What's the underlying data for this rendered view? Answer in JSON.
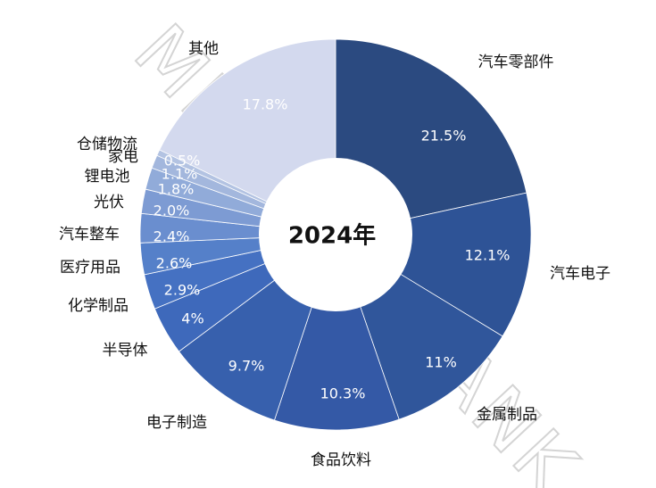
{
  "chart_data": {
    "type": "donut",
    "center_label": "2024年",
    "watermark": "MIR DATABANK",
    "categories": [
      "汽车零部件",
      "汽车电子",
      "金属制品",
      "食品饮料",
      "电子制造",
      "半导体",
      "化学制品",
      "医疗用品",
      "汽车整车",
      "光伏",
      "锂电池",
      "家电",
      "仓储物流",
      "其他"
    ],
    "values": [
      21.5,
      12.1,
      11,
      10.3,
      9.7,
      4,
      2.9,
      2.6,
      2.4,
      2.0,
      1.8,
      1.1,
      0.5,
      17.8
    ],
    "value_labels": [
      "21.5%",
      "12.1%",
      "11%",
      "10.3%",
      "9.7%",
      "4%",
      "2.9%",
      "2.6%",
      "2.4%",
      "2.0%",
      "1.8%",
      "1.1%",
      "0.5%",
      "17.8%"
    ],
    "colors": [
      "#2b4a80",
      "#2e5396",
      "#30569b",
      "#3459a6",
      "#3760ad",
      "#3e69bb",
      "#4571c2",
      "#5580c9",
      "#6a8ecf",
      "#7d9bd3",
      "#91abd9",
      "#a3b7dd",
      "#b3c3e2",
      "#d3d9ee"
    ]
  }
}
